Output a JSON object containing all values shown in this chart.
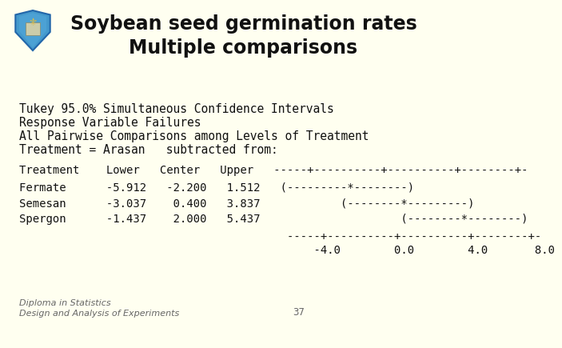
{
  "title_line1": "Soybean seed germination rates",
  "title_line2": "Multiple comparisons",
  "bg_color": "#FFFFF0",
  "title_color": "#111111",
  "text_color": "#111111",
  "mono_lines": [
    "Tukey 95.0% Simultaneous Confidence Intervals",
    "Response Variable Failures",
    "All Pairwise Comparisons among Levels of Treatment",
    "Treatment = Arasan   subtracted from:"
  ],
  "header_line": "Treatment    Lower   Center   Upper   -----+----------+----------+--------+-",
  "data_lines": [
    "Fermate      -5.912   -2.200   1.512   (---------*--------)",
    "Semesan      -3.037    0.400   3.837            (--------*---------)",
    "Spergon      -1.437    2.000   5.437                     (--------*--------)"
  ],
  "footer_line": "                                        -----+----------+----------+--------+-",
  "axis_line": "                                            -4.0        0.0        4.0       8.0",
  "footnote_left": "Diploma in Statistics\nDesign and Analysis of Experiments",
  "footnote_right": "37",
  "footnote_color": "#666666"
}
